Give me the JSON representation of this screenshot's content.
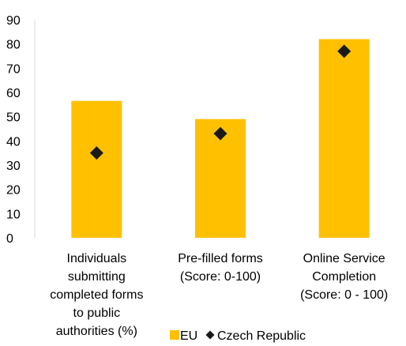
{
  "chart_data": {
    "type": "bar",
    "categories": [
      [
        "Individuals",
        "submitting",
        "completed forms",
        "to public",
        "authorities (%)"
      ],
      [
        "Pre-filled forms",
        "(Score: 0-100)"
      ],
      [
        "Online Service",
        "Completion",
        "(Score: 0 - 100)"
      ]
    ],
    "series": [
      {
        "name": "EU",
        "kind": "bar",
        "color": "#FFC000",
        "values": [
          56.5,
          49,
          82
        ]
      },
      {
        "name": "Czech Republic",
        "kind": "marker",
        "marker": "diamond",
        "color": "#1a1a1a",
        "values": [
          35,
          43,
          77
        ]
      }
    ],
    "yticks": [
      0,
      10,
      20,
      30,
      40,
      50,
      60,
      70,
      80,
      90
    ],
    "ylim": [
      0,
      90
    ],
    "grid": false,
    "legend": {
      "placement": "bottom"
    }
  }
}
